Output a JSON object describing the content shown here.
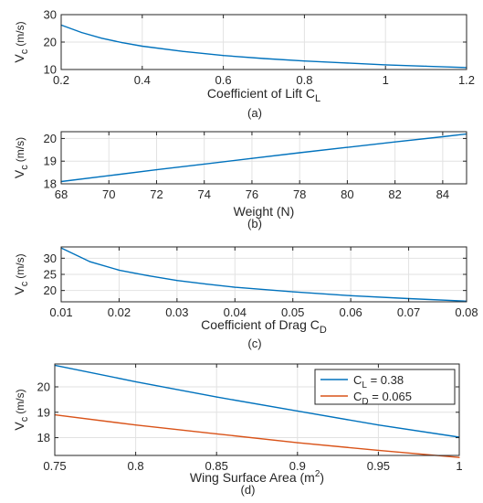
{
  "chart_data": [
    {
      "type": "line",
      "caption": "(a)",
      "xlabel": "Coefficient of Lift C",
      "xlabel_sub": "L",
      "ylabel": "V",
      "ylabel_sub": "c",
      "ylabel_unit": "(m/s)",
      "xlim": [
        0.2,
        1.2
      ],
      "ylim": [
        10,
        30
      ],
      "xticks": [
        0.2,
        0.4,
        0.6,
        0.8,
        1,
        1.2
      ],
      "xtick_labels": [
        "0.2",
        "0.4",
        "0.6",
        "0.8",
        "1",
        "1.2"
      ],
      "yticks": [
        10,
        20,
        30
      ],
      "ytick_labels": [
        "10",
        "20",
        "30"
      ],
      "grid": true,
      "series": [
        {
          "color": "#0072BD",
          "x": [
            0.2,
            0.25,
            0.3,
            0.35,
            0.4,
            0.5,
            0.6,
            0.7,
            0.8,
            0.9,
            1.0,
            1.1,
            1.2
          ],
          "y": [
            26.2,
            23.5,
            21.4,
            19.8,
            18.5,
            16.6,
            15.1,
            14.0,
            13.1,
            12.4,
            11.7,
            11.2,
            10.7
          ]
        }
      ]
    },
    {
      "type": "line",
      "caption": "(b)",
      "xlabel": "Weight (N)",
      "xlabel_sub": "",
      "ylabel": "V",
      "ylabel_sub": "c",
      "ylabel_unit": "(m/s)",
      "xlim": [
        68,
        85
      ],
      "ylim": [
        18,
        20.3
      ],
      "xticks": [
        68,
        70,
        72,
        74,
        76,
        78,
        80,
        82,
        84
      ],
      "xtick_labels": [
        "68",
        "70",
        "72",
        "74",
        "76",
        "78",
        "80",
        "82",
        "84"
      ],
      "yticks": [
        18,
        19,
        20
      ],
      "ytick_labels": [
        "18",
        "19",
        "20"
      ],
      "grid": true,
      "series": [
        {
          "color": "#0072BD",
          "x": [
            68,
            70,
            72,
            74,
            76,
            78,
            80,
            82,
            84,
            85
          ],
          "y": [
            18.1,
            18.36,
            18.62,
            18.87,
            19.12,
            19.37,
            19.61,
            19.85,
            20.08,
            20.2
          ]
        }
      ]
    },
    {
      "type": "line",
      "caption": "(c)",
      "xlabel": "Coefficient of Drag C",
      "xlabel_sub": "D",
      "ylabel": "V",
      "ylabel_sub": "c",
      "ylabel_unit": "(m/s)",
      "xlim": [
        0.01,
        0.08
      ],
      "ylim": [
        16.5,
        33.5
      ],
      "xticks": [
        0.01,
        0.02,
        0.03,
        0.04,
        0.05,
        0.06,
        0.07,
        0.08
      ],
      "xtick_labels": [
        "0.01",
        "0.02",
        "0.03",
        "0.04",
        "0.05",
        "0.06",
        "0.07",
        "0.08"
      ],
      "yticks": [
        20,
        25,
        30
      ],
      "ytick_labels": [
        "20",
        "25",
        "30"
      ],
      "grid": true,
      "series": [
        {
          "color": "#0072BD",
          "x": [
            0.01,
            0.015,
            0.02,
            0.025,
            0.03,
            0.035,
            0.04,
            0.05,
            0.06,
            0.07,
            0.08
          ],
          "y": [
            33.2,
            28.9,
            26.3,
            24.6,
            23.1,
            22.0,
            21.0,
            19.6,
            18.4,
            17.5,
            16.7
          ]
        }
      ]
    },
    {
      "type": "line",
      "caption": "(d)",
      "xlabel": "Wing Surface Area (m",
      "xlabel_sup": "2",
      "xlabel_end": ")",
      "ylabel": "V",
      "ylabel_sub": "c",
      "ylabel_unit": "(m/s)",
      "xlim": [
        0.75,
        1
      ],
      "ylim": [
        17.3,
        20.9
      ],
      "xticks": [
        0.75,
        0.8,
        0.85,
        0.9,
        0.95,
        1
      ],
      "xtick_labels": [
        "0.75",
        "0.8",
        "0.85",
        "0.9",
        "0.95",
        "1"
      ],
      "yticks": [
        18,
        19,
        20
      ],
      "ytick_labels": [
        "18",
        "19",
        "20"
      ],
      "grid": true,
      "legend": "top-right",
      "series": [
        {
          "name": "C",
          "name_sub": "L",
          "name_rest": " = 0.38",
          "color": "#0072BD",
          "x": [
            0.75,
            0.8,
            0.85,
            0.9,
            0.95,
            1.0
          ],
          "y": [
            20.85,
            20.2,
            19.6,
            19.05,
            18.5,
            18.02
          ]
        },
        {
          "name": "C",
          "name_sub": "D",
          "name_rest": " = 0.065",
          "color": "#D95319",
          "x": [
            0.75,
            0.8,
            0.85,
            0.9,
            0.95,
            1.0
          ],
          "y": [
            18.9,
            18.5,
            18.15,
            17.8,
            17.5,
            17.22
          ]
        }
      ]
    }
  ]
}
